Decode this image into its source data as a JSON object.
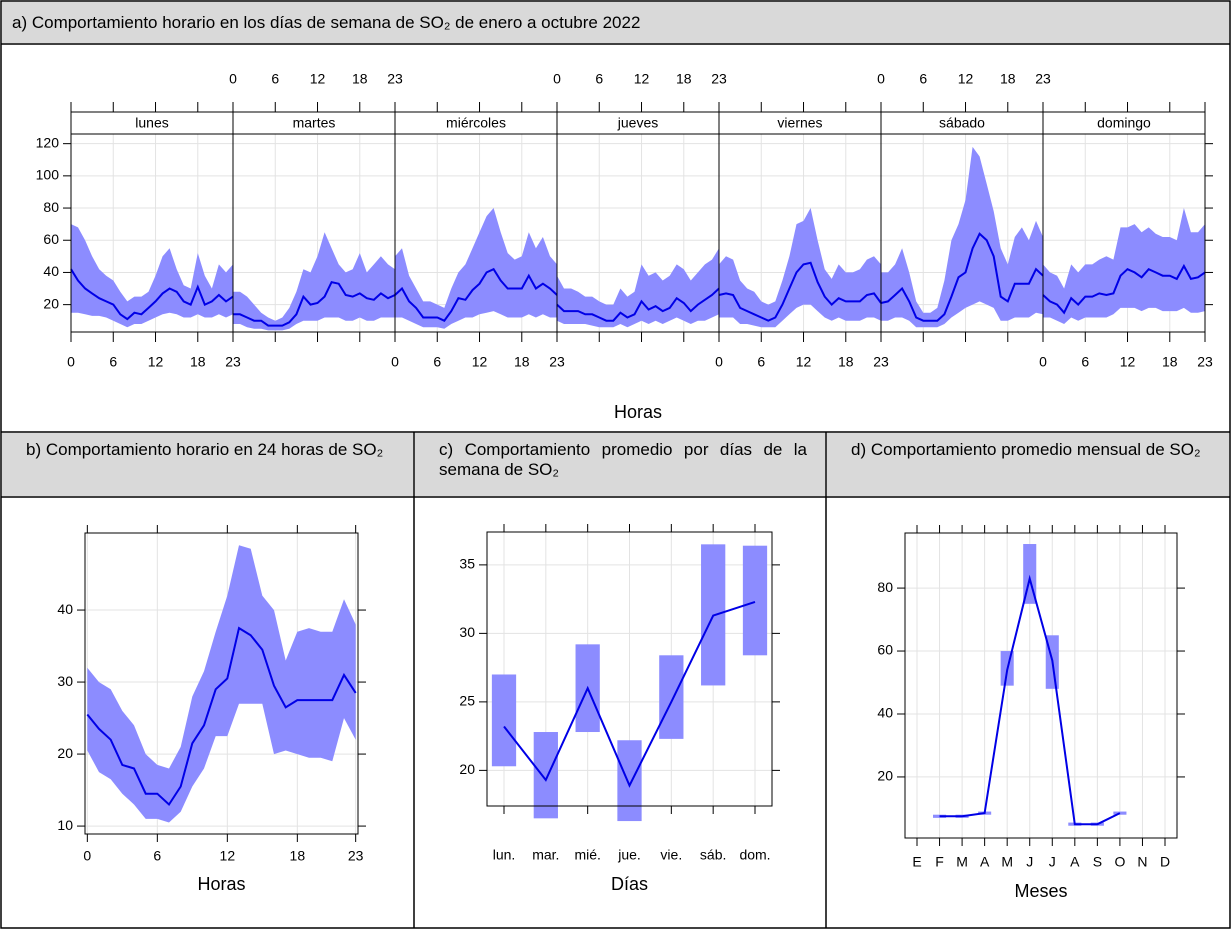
{
  "chart_data": [
    {
      "type": "band_panels",
      "title": "a) Comportamiento horario en los días de semana de SO₂ de enero a octubre 2022",
      "x_label": "Horas",
      "x": [
        0,
        1,
        2,
        3,
        4,
        5,
        6,
        7,
        8,
        9,
        10,
        11,
        12,
        13,
        14,
        15,
        16,
        17,
        18,
        19,
        20,
        21,
        22,
        23
      ],
      "xlim": [
        0,
        23
      ],
      "xticks": [
        0,
        6,
        12,
        18,
        23
      ],
      "ylim": [
        3,
        126
      ],
      "yticks": [
        20,
        40,
        60,
        80,
        100,
        120
      ],
      "grid": true,
      "line_color": "#0000e6",
      "band_color": "#8c8cff",
      "panels": [
        {
          "name": "lunes",
          "values": [
            42,
            35,
            30,
            27,
            24,
            22,
            20,
            14,
            11,
            15,
            14,
            18,
            22,
            27,
            30,
            28,
            22,
            20,
            31,
            20,
            22,
            26,
            22,
            25
          ],
          "upper": [
            70,
            68,
            60,
            50,
            42,
            38,
            35,
            28,
            22,
            25,
            25,
            28,
            38,
            50,
            55,
            42,
            32,
            30,
            52,
            38,
            30,
            45,
            40,
            45
          ],
          "lower": [
            15,
            15,
            14,
            13,
            13,
            12,
            10,
            8,
            6,
            8,
            8,
            10,
            12,
            14,
            15,
            14,
            12,
            12,
            14,
            12,
            12,
            14,
            12,
            14
          ]
        },
        {
          "name": "martes",
          "values": [
            14,
            14,
            12,
            10,
            10,
            7,
            7,
            7,
            9,
            14,
            25,
            20,
            21,
            25,
            34,
            33,
            26,
            25,
            27,
            24,
            23,
            27,
            24,
            26
          ],
          "upper": [
            28,
            28,
            25,
            20,
            15,
            12,
            10,
            12,
            18,
            28,
            42,
            40,
            50,
            65,
            55,
            45,
            40,
            42,
            52,
            40,
            45,
            50,
            45,
            42
          ],
          "lower": [
            8,
            8,
            6,
            5,
            5,
            4,
            4,
            4,
            5,
            8,
            10,
            10,
            10,
            12,
            12,
            12,
            10,
            10,
            12,
            10,
            10,
            12,
            12,
            12
          ]
        },
        {
          "name": "miércoles",
          "values": [
            26,
            30,
            22,
            18,
            12,
            12,
            12,
            10,
            16,
            24,
            23,
            29,
            33,
            40,
            42,
            35,
            30,
            30,
            30,
            38,
            30,
            33,
            30,
            26
          ],
          "upper": [
            50,
            55,
            38,
            30,
            22,
            22,
            20,
            18,
            30,
            40,
            45,
            55,
            65,
            75,
            80,
            65,
            52,
            48,
            50,
            65,
            55,
            62,
            50,
            45
          ],
          "lower": [
            12,
            12,
            10,
            8,
            6,
            6,
            6,
            5,
            8,
            10,
            12,
            12,
            14,
            15,
            16,
            14,
            12,
            12,
            12,
            14,
            12,
            14,
            12,
            12
          ]
        },
        {
          "name": "jueves",
          "values": [
            20,
            16,
            16,
            16,
            14,
            14,
            12,
            10,
            10,
            15,
            12,
            14,
            22,
            17,
            19,
            16,
            18,
            24,
            21,
            16,
            20,
            23,
            26,
            30
          ],
          "upper": [
            38,
            30,
            30,
            28,
            25,
            25,
            22,
            20,
            20,
            30,
            25,
            28,
            45,
            38,
            40,
            35,
            38,
            45,
            42,
            35,
            40,
            45,
            48,
            55
          ],
          "lower": [
            10,
            8,
            8,
            8,
            8,
            7,
            6,
            6,
            6,
            8,
            6,
            8,
            10,
            8,
            10,
            8,
            10,
            12,
            10,
            8,
            10,
            10,
            12,
            14
          ]
        },
        {
          "name": "viernes",
          "values": [
            26,
            27,
            26,
            18,
            16,
            14,
            12,
            10,
            12,
            20,
            30,
            40,
            45,
            46,
            34,
            25,
            20,
            24,
            22,
            22,
            22,
            26,
            27,
            21
          ],
          "upper": [
            45,
            50,
            48,
            35,
            30,
            28,
            22,
            20,
            22,
            35,
            50,
            70,
            72,
            80,
            60,
            42,
            36,
            45,
            40,
            40,
            42,
            48,
            50,
            45
          ],
          "lower": [
            12,
            12,
            12,
            8,
            8,
            7,
            6,
            6,
            6,
            10,
            14,
            18,
            20,
            20,
            16,
            12,
            10,
            12,
            10,
            10,
            10,
            12,
            12,
            10
          ]
        },
        {
          "name": "sábado",
          "values": [
            21,
            22,
            26,
            30,
            22,
            12,
            10,
            10,
            10,
            14,
            25,
            37,
            40,
            55,
            64,
            60,
            50,
            25,
            22,
            33,
            33,
            33,
            42,
            38
          ],
          "upper": [
            40,
            40,
            45,
            55,
            40,
            22,
            15,
            15,
            18,
            35,
            60,
            70,
            85,
            118,
            112,
            95,
            78,
            55,
            45,
            62,
            68,
            60,
            72,
            62
          ],
          "lower": [
            10,
            10,
            12,
            12,
            10,
            6,
            6,
            6,
            6,
            8,
            12,
            15,
            18,
            20,
            22,
            20,
            18,
            10,
            10,
            12,
            12,
            12,
            15,
            14
          ]
        },
        {
          "name": "domingo",
          "values": [
            26,
            22,
            20,
            15,
            24,
            20,
            25,
            25,
            27,
            26,
            27,
            38,
            42,
            40,
            37,
            42,
            40,
            38,
            38,
            36,
            44,
            36,
            37,
            40
          ],
          "upper": [
            45,
            40,
            38,
            30,
            45,
            40,
            45,
            45,
            48,
            50,
            48,
            68,
            68,
            70,
            65,
            68,
            64,
            62,
            62,
            60,
            80,
            65,
            65,
            70
          ],
          "lower": [
            12,
            12,
            10,
            8,
            12,
            10,
            12,
            12,
            12,
            12,
            14,
            18,
            18,
            18,
            16,
            18,
            18,
            16,
            16,
            16,
            18,
            15,
            15,
            16
          ]
        }
      ]
    },
    {
      "type": "band_line",
      "title": "b) Comportamiento horario en 24 horas de SO₂",
      "x_label": "Horas",
      "x": [
        0,
        1,
        2,
        3,
        4,
        5,
        6,
        7,
        8,
        9,
        10,
        11,
        12,
        13,
        14,
        15,
        16,
        17,
        18,
        19,
        20,
        21,
        22,
        23
      ],
      "xlim": [
        -0.2,
        23.2
      ],
      "xticks": [
        0,
        6,
        12,
        18,
        23
      ],
      "ylim": [
        8.9,
        50.7
      ],
      "yticks": [
        10,
        20,
        30,
        40
      ],
      "grid": true,
      "line_color": "#0000e6",
      "band_color": "#8c8cff",
      "values": [
        25.5,
        23.5,
        22,
        18.5,
        18,
        14.5,
        14.5,
        13,
        15.5,
        21.5,
        24,
        29,
        30.5,
        37.5,
        36.5,
        34.5,
        29.5,
        26.5,
        27.5,
        27.5,
        27.5,
        27.5,
        31,
        28.5
      ],
      "upper": [
        32,
        30,
        29,
        26,
        24,
        20,
        18.5,
        18,
        21,
        28,
        31.5,
        37,
        42,
        49,
        48.5,
        42,
        40,
        33,
        37,
        37.5,
        37,
        37,
        41.5,
        38
      ],
      "lower": [
        20.5,
        17.5,
        16.5,
        14.5,
        13,
        11,
        11,
        10.5,
        12,
        15.5,
        18,
        22.5,
        22.5,
        27,
        27,
        27,
        20,
        20.5,
        20,
        19.5,
        19.5,
        19,
        25,
        22
      ]
    },
    {
      "type": "range_bar",
      "title": "c) Comportamiento promedio por días de la semana de SO₂",
      "x_label": "Días",
      "categories": [
        "lun.",
        "mar.",
        "mié.",
        "jue.",
        "vie.",
        "sáb.",
        "dom."
      ],
      "ylim": [
        17.4,
        37.4
      ],
      "yticks": [
        20,
        25,
        30,
        35
      ],
      "grid": true,
      "line_color": "#0000e6",
      "band_color": "#8c8cff",
      "values": [
        23.2,
        19.3,
        26,
        18.9,
        25,
        31.3,
        32.3
      ],
      "upper": [
        27,
        22.8,
        29.2,
        22.2,
        28.4,
        36.5,
        36.4
      ],
      "lower": [
        20.3,
        16.5,
        22.8,
        16.3,
        22.3,
        26.2,
        28.4
      ]
    },
    {
      "type": "range_bar",
      "title": "d) Comportamiento promedio mensual de SO₂",
      "x_label": "Meses",
      "categories": [
        "E",
        "F",
        "M",
        "A",
        "M",
        "J",
        "J",
        "A",
        "S",
        "O",
        "N",
        "D"
      ],
      "ylim": [
        0.6,
        97.5
      ],
      "yticks": [
        20,
        40,
        60,
        80
      ],
      "grid": true,
      "line_color": "#0000e6",
      "band_color": "#8c8cff",
      "values": [
        null,
        7.5,
        7.5,
        8.5,
        54,
        83,
        57,
        5,
        5,
        8.5,
        null,
        null
      ],
      "upper": [
        null,
        8,
        8,
        9,
        60,
        94,
        65,
        5.5,
        5.5,
        9,
        null,
        null
      ],
      "lower": [
        null,
        7,
        7,
        8,
        49,
        75,
        48,
        4.5,
        4.5,
        8,
        null,
        null
      ]
    }
  ]
}
